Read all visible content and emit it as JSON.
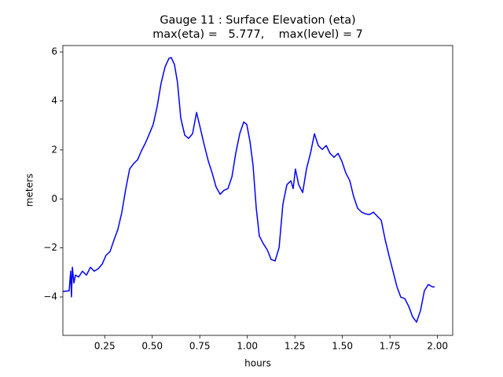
{
  "chart_data": {
    "type": "line",
    "title": "Gauge 11 : Surface Elevation (eta)",
    "subtitle": "max(eta) =   5.777,    max(level) = 7",
    "xlabel": "hours",
    "ylabel": "meters",
    "xlim": [
      0.03,
      2.08
    ],
    "ylim": [
      -5.57,
      6.26
    ],
    "xticks": [
      0.25,
      {
        "value": 0.5,
        "label": "0.50"
      },
      0.75,
      {
        "value": 1.0,
        "label": "1.00"
      },
      1.25,
      {
        "value": 1.5,
        "label": "1.50"
      },
      1.75,
      {
        "value": 2.0,
        "label": "2.00"
      }
    ],
    "yticks": [
      {
        "value": -4,
        "label": "−4"
      },
      {
        "value": -2,
        "label": "−2"
      },
      0,
      2,
      4,
      6
    ],
    "grid": false,
    "series": [
      {
        "name": "eta",
        "color": "#0000ff",
        "x": [
          0.03,
          0.063,
          0.071,
          0.075,
          0.08,
          0.088,
          0.096,
          0.113,
          0.133,
          0.154,
          0.175,
          0.195,
          0.216,
          0.237,
          0.257,
          0.278,
          0.299,
          0.319,
          0.34,
          0.361,
          0.381,
          0.402,
          0.423,
          0.443,
          0.464,
          0.485,
          0.505,
          0.526,
          0.547,
          0.567,
          0.588,
          0.6,
          0.617,
          0.633,
          0.65,
          0.671,
          0.691,
          0.712,
          0.733,
          0.753,
          0.774,
          0.795,
          0.815,
          0.836,
          0.857,
          0.877,
          0.898,
          0.919,
          0.939,
          0.96,
          0.981,
          0.997,
          1.014,
          1.03,
          1.047,
          1.063,
          1.084,
          1.105,
          1.125,
          1.146,
          1.167,
          1.187,
          1.208,
          1.229,
          1.241,
          1.253,
          1.27,
          1.291,
          1.311,
          1.332,
          1.353,
          1.373,
          1.394,
          1.415,
          1.435,
          1.456,
          1.477,
          1.497,
          1.518,
          1.539,
          1.559,
          1.58,
          1.601,
          1.621,
          1.642,
          1.663,
          1.683,
          1.704,
          1.725,
          1.745,
          1.766,
          1.787,
          1.807,
          1.828,
          1.849,
          1.869,
          1.89,
          1.911,
          1.931,
          1.952,
          1.973,
          1.985
        ],
        "values": [
          -3.78,
          -3.75,
          -2.95,
          -4.0,
          -2.79,
          -3.43,
          -3.11,
          -3.19,
          -2.95,
          -3.11,
          -2.79,
          -2.95,
          -2.85,
          -2.66,
          -2.3,
          -2.15,
          -1.67,
          -1.25,
          -0.55,
          0.42,
          1.22,
          1.44,
          1.6,
          1.96,
          2.28,
          2.66,
          3.04,
          3.78,
          4.74,
          5.38,
          5.74,
          5.77,
          5.48,
          4.74,
          3.3,
          2.6,
          2.47,
          2.66,
          3.53,
          2.88,
          2.18,
          1.54,
          1.06,
          0.48,
          0.19,
          0.35,
          0.42,
          0.9,
          1.86,
          2.66,
          3.14,
          3.04,
          2.34,
          1.38,
          -0.38,
          -1.51,
          -1.83,
          -2.08,
          -2.47,
          -2.53,
          -1.99,
          -0.22,
          0.58,
          0.74,
          0.42,
          1.22,
          0.58,
          0.26,
          1.22,
          1.86,
          2.66,
          2.18,
          2.02,
          2.18,
          1.86,
          1.7,
          1.86,
          1.54,
          1.06,
          0.74,
          0.1,
          -0.38,
          -0.54,
          -0.61,
          -0.64,
          -0.54,
          -0.7,
          -0.87,
          -1.67,
          -2.31,
          -2.95,
          -3.59,
          -4.01,
          -4.07,
          -4.39,
          -4.81,
          -5.03,
          -4.55,
          -3.75,
          -3.49,
          -3.59,
          -3.59
        ]
      }
    ]
  }
}
